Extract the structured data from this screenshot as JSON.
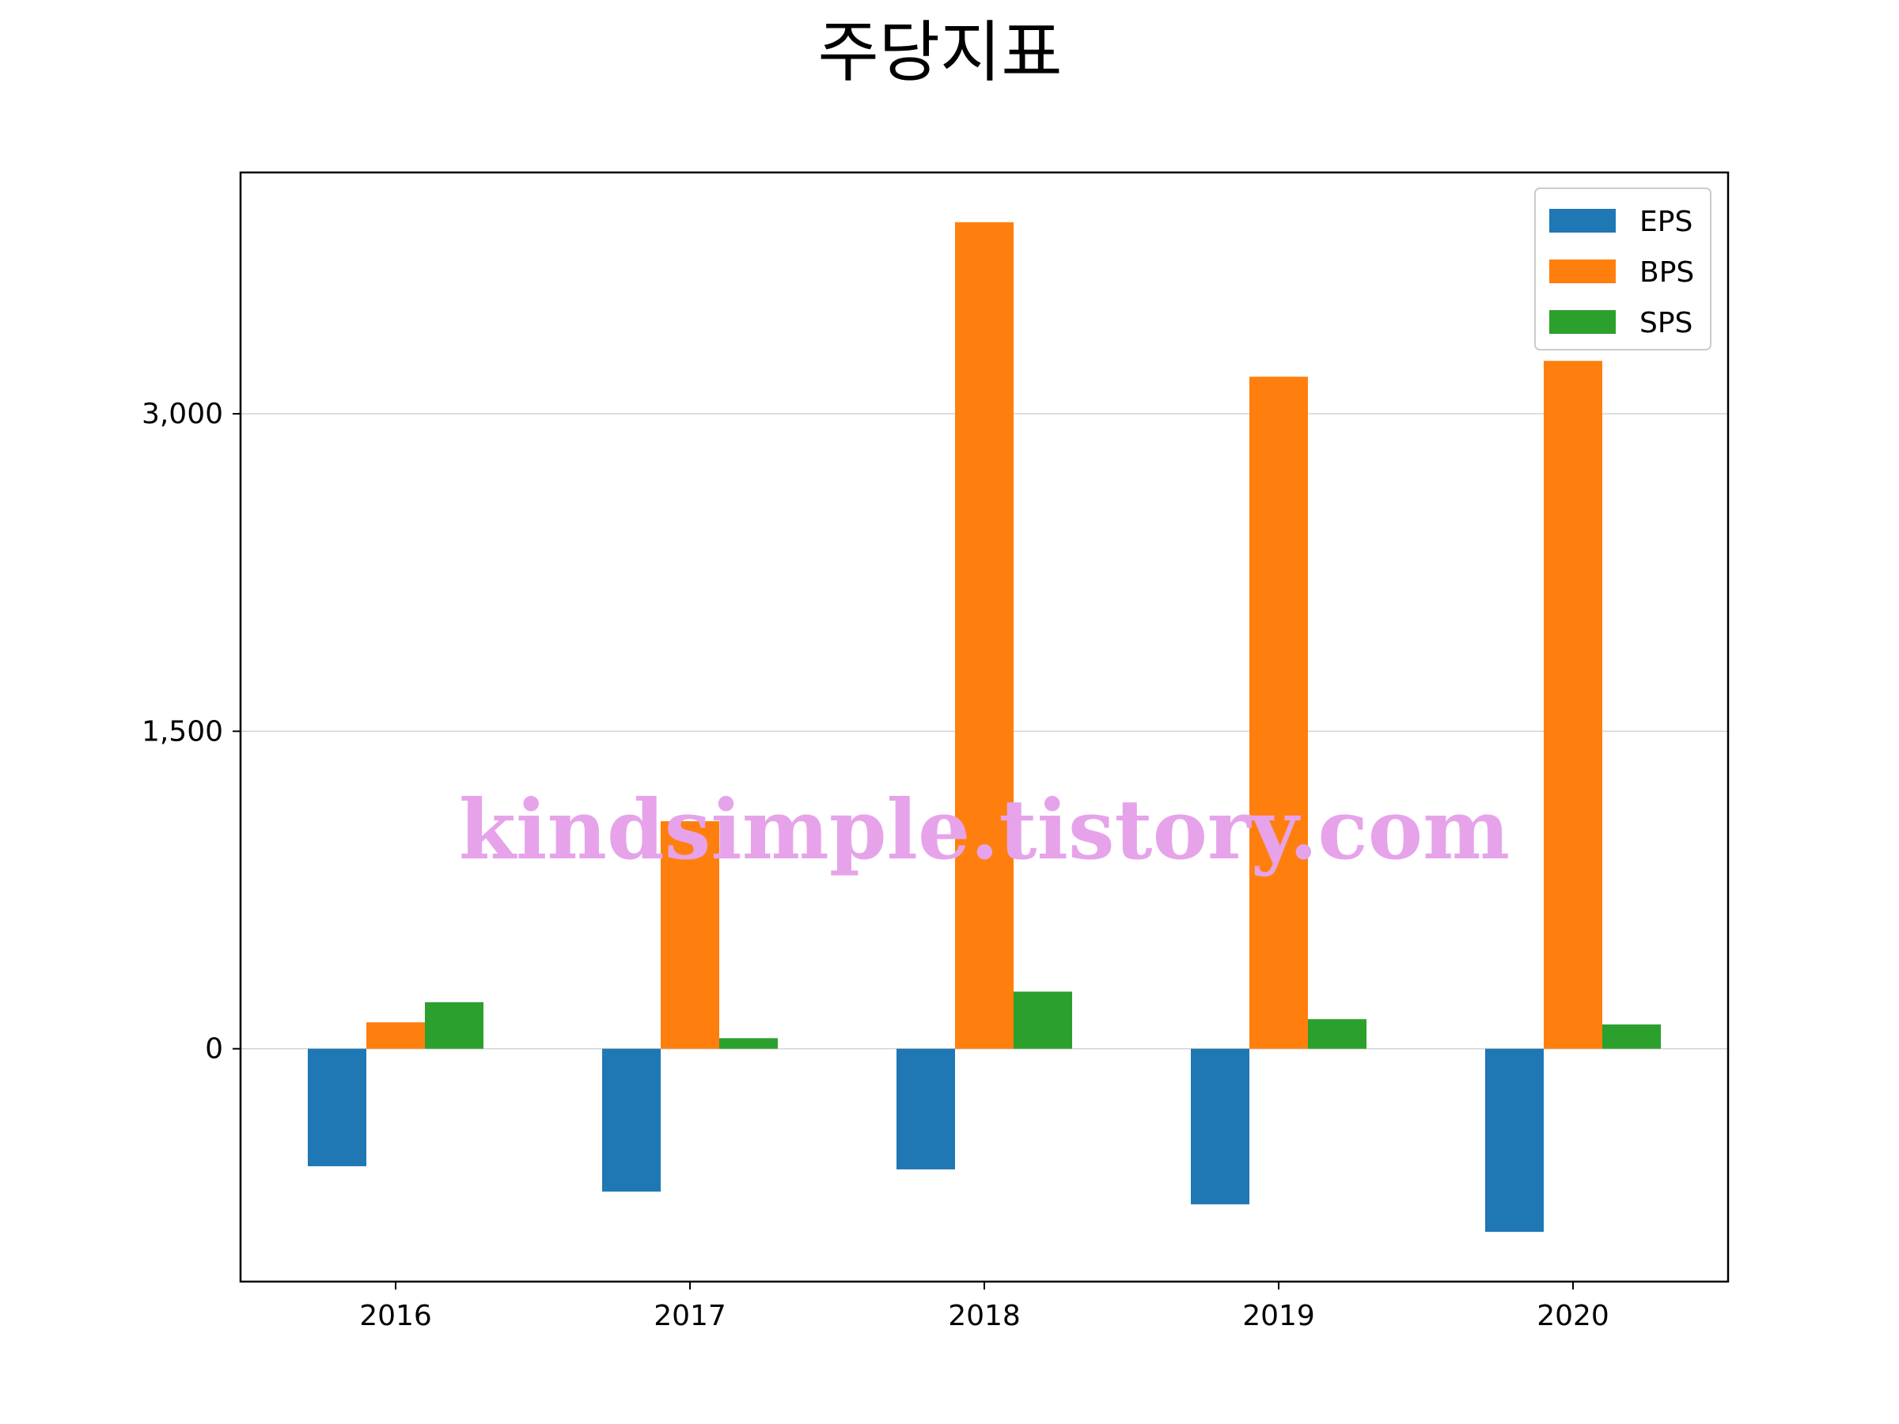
{
  "chart_data": {
    "type": "bar",
    "title": "주당지표",
    "xlabel": "",
    "ylabel": "",
    "categories": [
      "2016",
      "2017",
      "2018",
      "2019",
      "2020"
    ],
    "series": [
      {
        "name": "EPS",
        "color": "#1f77b4",
        "values": [
          -555,
          -675,
          -570,
          -735,
          -865
        ]
      },
      {
        "name": "BPS",
        "color": "#ff7f0e",
        "values": [
          125,
          1075,
          3905,
          3175,
          3250
        ]
      },
      {
        "name": "SPS",
        "color": "#2ca02c",
        "values": [
          220,
          50,
          270,
          140,
          115
        ]
      }
    ],
    "ylim": [
      -1100,
      4140
    ],
    "yticks": [
      0,
      1500,
      3000
    ],
    "ytick_labels": [
      "0",
      "1,500",
      "3,000"
    ],
    "grid": "y",
    "legend_position": "top-right",
    "watermark": "kindsimple.tistory.com"
  }
}
